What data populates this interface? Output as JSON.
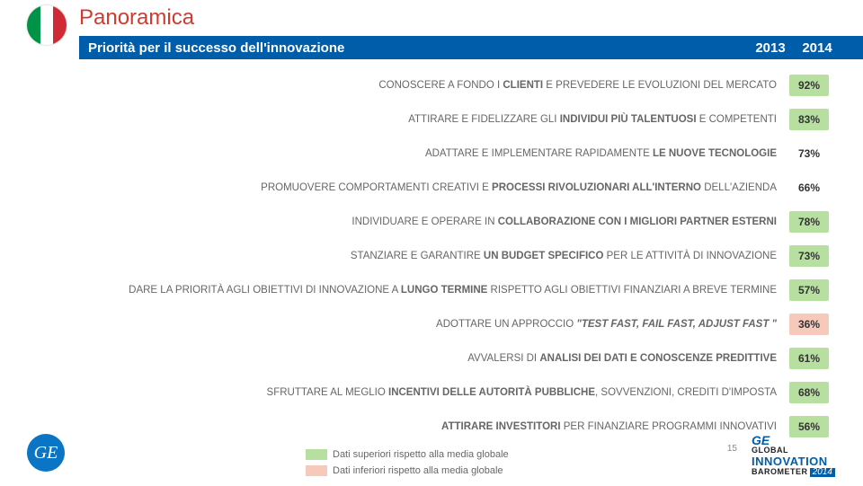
{
  "title": {
    "text": "Panoramica",
    "color": "#d33a2f"
  },
  "flag": {
    "left": "#009246",
    "mid": "#ffffff",
    "right": "#ce2b37"
  },
  "subtitle": "Priorità per il successo dell'innovazione",
  "years": {
    "y2013": "2013",
    "y2014": "2014"
  },
  "colors": {
    "higher_bg": "#b7e0a0",
    "lower_bg": "#f6c9bb",
    "neutral_bg": "transparent",
    "val_text": "#333333",
    "label_text": "#666666",
    "row_year2013_left": "832",
    "row_year2014_left": "884"
  },
  "rows": [
    {
      "label_pre": "CONOSCERE A FONDO I ",
      "label_bold": "CLIENTI",
      "label_post": " E PREVEDERE LE EVOLUZIONI DEL MERCATO",
      "value": "92%",
      "tone": "higher"
    },
    {
      "label_pre": "ATTIRARE E FIDELIZZARE GLI ",
      "label_bold": "INDIVIDUI PIÙ TALENTUOSI",
      "label_post": " E COMPETENTI",
      "value": "83%",
      "tone": "higher"
    },
    {
      "label_pre": "ADATTARE E IMPLEMENTARE RAPIDAMENTE ",
      "label_bold": "LE NUOVE TECNOLOGIE",
      "label_post": "",
      "value": "73%",
      "tone": "neutral"
    },
    {
      "label_pre": "PROMUOVERE COMPORTAMENTI CREATIVI E ",
      "label_bold": "PROCESSI RIVOLUZIONARI ALL'INTERNO",
      "label_post": " DELL'AZIENDA",
      "value": "66%",
      "tone": "neutral"
    },
    {
      "label_pre": "INDIVIDUARE E OPERARE IN ",
      "label_bold": "COLLABORAZIONE CON I MIGLIORI PARTNER ESTERNI",
      "label_post": "",
      "value": "78%",
      "tone": "higher"
    },
    {
      "label_pre": "STANZIARE E GARANTIRE ",
      "label_bold": "UN BUDGET SPECIFICO",
      "label_post": " PER LE ATTIVITÀ DI INNOVAZIONE",
      "value": "73%",
      "tone": "higher"
    },
    {
      "label_pre": "DARE LA PRIORITÀ AGLI OBIETTIVI DI INNOVAZIONE A ",
      "label_bold": "LUNGO TERMINE",
      "label_post": " RISPETTO AGLI OBIETTIVI FINANZIARI A BREVE TERMINE",
      "value": "57%",
      "tone": "higher"
    },
    {
      "label_pre": "ADOTTARE UN APPROCCIO ",
      "label_bold": "\"TEST FAST, FAIL FAST, ADJUST FAST \"",
      "label_post": "",
      "bold_italic": true,
      "value": "36%",
      "tone": "lower"
    },
    {
      "label_pre": "AVVALERSI DI ",
      "label_bold": "ANALISI DEI DATI E CONOSCENZE PREDITTIVE",
      "label_post": "",
      "value": "61%",
      "tone": "higher"
    },
    {
      "label_pre": "SFRUTTARE AL MEGLIO ",
      "label_bold": "INCENTIVI DELLE AUTORITÀ PUBBLICHE",
      "label_post": ", SOVVENZIONI, CREDITI D'IMPOSTA",
      "value": "68%",
      "tone": "higher"
    },
    {
      "label_pre": "",
      "label_bold": "ATTIRARE INVESTITORI",
      "label_post": " PER FINANZIARE PROGRAMMI INNOVATIVI",
      "value": "56%",
      "tone": "higher"
    }
  ],
  "legend": {
    "higher": "Dati superiori rispetto alla media globale",
    "lower": "Dati inferiori rispetto alla media globale"
  },
  "page_number": "15",
  "ge_mono": "GE",
  "barometer": {
    "ge": "GE",
    "line1": "GLOBAL",
    "line2": "INNOVATION",
    "line3": "BAROMETER",
    "year": "2014"
  }
}
